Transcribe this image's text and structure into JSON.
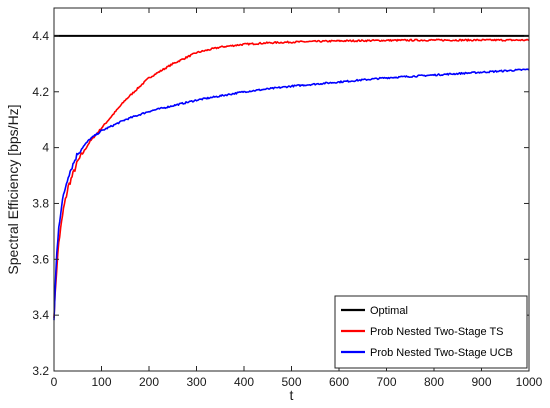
{
  "chart_data": {
    "type": "line",
    "xlabel": "t",
    "ylabel": "Spectral Efficiency [bps/Hz]",
    "xlim": [
      0,
      1000
    ],
    "ylim": [
      3.2,
      4.5
    ],
    "xticks": [
      0,
      100,
      200,
      300,
      400,
      500,
      600,
      700,
      800,
      900,
      1000
    ],
    "yticks": [
      3.2,
      3.4,
      3.6,
      3.8,
      4,
      4.2,
      4.4
    ],
    "xtick_labels": [
      "0",
      "100",
      "200",
      "300",
      "400",
      "500",
      "600",
      "700",
      "800",
      "900",
      "1000"
    ],
    "ytick_labels": [
      "3.2",
      "3.4",
      "3.6",
      "3.8",
      "4",
      "4.2",
      "4.4"
    ],
    "grid": false,
    "legend_position": "bottom-right",
    "series": [
      {
        "name": "Optimal",
        "color": "#000000",
        "x": [
          0,
          1000
        ],
        "y": [
          4.4,
          4.4
        ]
      },
      {
        "name": "Prob Nested Two-Stage TS",
        "color": "#ff0000",
        "x": [
          0,
          5,
          10,
          20,
          30,
          50,
          75,
          100,
          125,
          150,
          200,
          250,
          300,
          350,
          400,
          450,
          500,
          600,
          700,
          800,
          900,
          1000
        ],
        "y": [
          3.4,
          3.55,
          3.66,
          3.78,
          3.86,
          3.95,
          4.02,
          4.07,
          4.12,
          4.17,
          4.25,
          4.3,
          4.34,
          4.36,
          4.37,
          4.375,
          4.378,
          4.382,
          4.384,
          4.385,
          4.385,
          4.385
        ]
      },
      {
        "name": "Prob Nested Two-Stage UCB",
        "color": "#0000ff",
        "x": [
          0,
          5,
          10,
          20,
          30,
          50,
          75,
          100,
          125,
          150,
          200,
          250,
          300,
          350,
          400,
          450,
          500,
          600,
          700,
          800,
          900,
          1000
        ],
        "y": [
          3.38,
          3.6,
          3.72,
          3.83,
          3.9,
          3.98,
          4.03,
          4.06,
          4.08,
          4.1,
          4.13,
          4.15,
          4.17,
          4.185,
          4.2,
          4.21,
          4.22,
          4.235,
          4.25,
          4.26,
          4.27,
          4.28
        ]
      }
    ]
  }
}
